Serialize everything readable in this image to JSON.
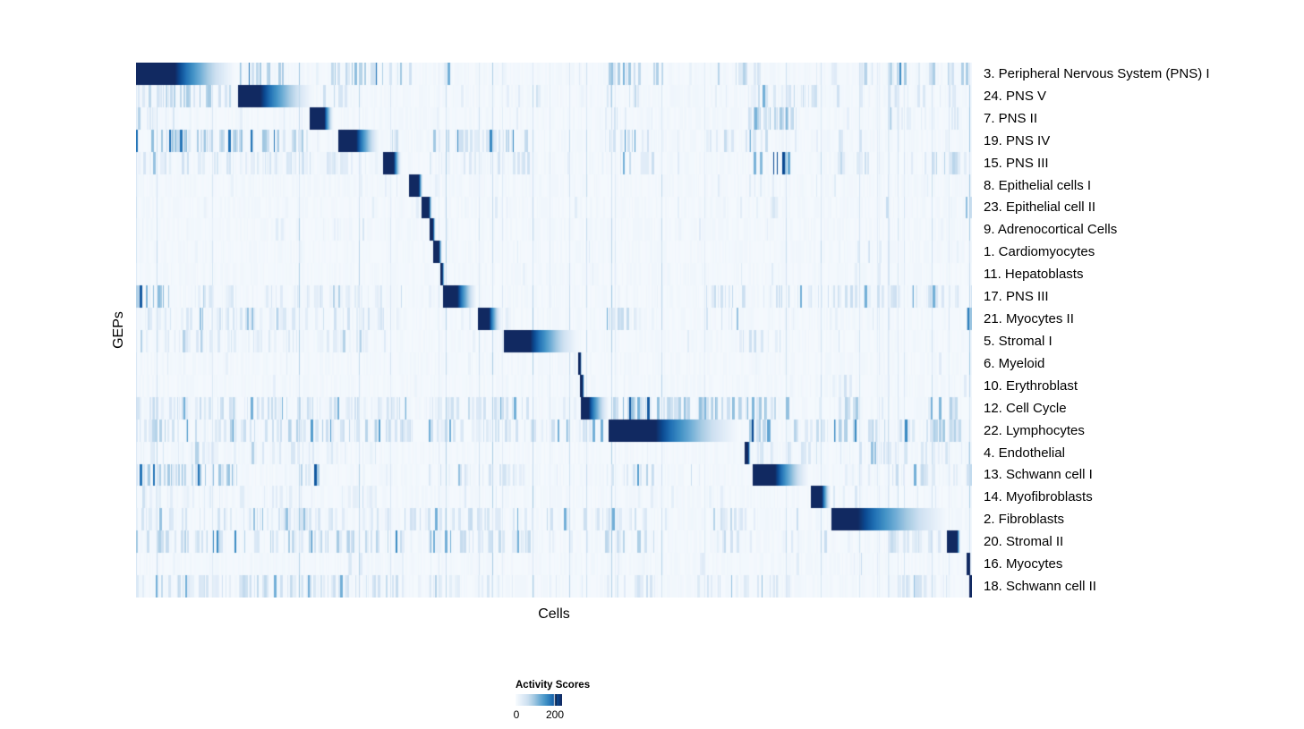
{
  "chart_data": {
    "type": "heatmap",
    "xlabel": "Cells",
    "ylabel": "GEPs",
    "legend": {
      "title": "Activity Scores",
      "min_label": "0",
      "max_label": "200",
      "tick_values": [
        0,
        200
      ],
      "tick_fraction": 0.85
    },
    "colormap": {
      "name": "blues",
      "stops": [
        [
          0.0,
          "#f6fafe"
        ],
        [
          0.13,
          "#e2edf8"
        ],
        [
          0.26,
          "#cde0f1"
        ],
        [
          0.39,
          "#a5cae3"
        ],
        [
          0.52,
          "#6fadd6"
        ],
        [
          0.65,
          "#4292c6"
        ],
        [
          0.78,
          "#2171b5"
        ],
        [
          0.9,
          "#0b4a92"
        ],
        [
          1.0,
          "#112961"
        ]
      ]
    },
    "render_columns": 934,
    "rows": [
      {
        "label": "3. Peripheral Nervous System (PNS) I",
        "block": {
          "start": 0.0,
          "solid": 0.046,
          "fade": 0.12
        },
        "noise": {
          "base": 0.05,
          "regions": [
            [
              0.122,
              0.175,
              0.55,
              0.45
            ],
            [
              0.23,
              0.33,
              0.5,
              0.45
            ],
            [
              0.355,
              0.38,
              0.3,
              0.3
            ],
            [
              0.475,
              0.49,
              0.3,
              0.3
            ],
            [
              0.56,
              0.63,
              0.45,
              0.5
            ],
            [
              0.69,
              0.75,
              0.35,
              0.35
            ],
            [
              0.86,
              1.0,
              0.45,
              0.4
            ]
          ]
        }
      },
      {
        "label": "24. PNS V",
        "block": {
          "start": 0.121,
          "solid": 0.148,
          "fade": 0.214
        },
        "noise": {
          "base": 0.05,
          "regions": [
            [
              0.0,
              0.115,
              0.55,
              0.4
            ],
            [
              0.22,
              0.25,
              0.3,
              0.3
            ],
            [
              0.475,
              0.49,
              0.3,
              0.3
            ],
            [
              0.56,
              0.6,
              0.3,
              0.3
            ],
            [
              0.73,
              0.84,
              0.4,
              0.3
            ],
            [
              0.9,
              1.0,
              0.3,
              0.25
            ]
          ]
        }
      },
      {
        "label": "7. PNS II",
        "block": {
          "start": 0.207,
          "solid": 0.225,
          "fade": 0.236
        },
        "noise": {
          "base": 0.04,
          "regions": [
            [
              0.0,
              0.05,
              0.3,
              0.2
            ],
            [
              0.56,
              0.6,
              0.3,
              0.25
            ],
            [
              0.73,
              0.79,
              0.55,
              0.5
            ],
            [
              0.9,
              1.0,
              0.25,
              0.2
            ]
          ]
        }
      },
      {
        "label": "19. PNS IV",
        "block": {
          "start": 0.241,
          "solid": 0.263,
          "fade": 0.292
        },
        "noise": {
          "base": 0.06,
          "regions": [
            [
              0.0,
              0.205,
              0.55,
              0.45
            ],
            [
              0.3,
              0.33,
              0.3,
              0.3
            ],
            [
              0.35,
              0.47,
              0.45,
              0.4
            ],
            [
              0.56,
              0.62,
              0.4,
              0.35
            ],
            [
              0.68,
              0.76,
              0.35,
              0.3
            ],
            [
              0.83,
              0.87,
              0.35,
              0.3
            ]
          ]
        }
      },
      {
        "label": "15. PNS III",
        "block": {
          "start": 0.295,
          "solid": 0.308,
          "fade": 0.317
        },
        "noise": {
          "base": 0.06,
          "regions": [
            [
              0.0,
              0.29,
              0.4,
              0.25
            ],
            [
              0.35,
              0.47,
              0.35,
              0.25
            ],
            [
              0.56,
              0.62,
              0.35,
              0.3
            ],
            [
              0.73,
              0.78,
              0.5,
              0.55
            ],
            [
              0.83,
              0.88,
              0.4,
              0.35
            ],
            [
              0.95,
              1.0,
              0.4,
              0.35
            ]
          ]
        }
      },
      {
        "label": "8. Epithelial cells I",
        "block": {
          "start": 0.326,
          "solid": 0.338,
          "fade": 0.343
        },
        "noise": {
          "base": 0.03,
          "regions": [
            [
              0.73,
              0.76,
              0.25,
              0.25
            ]
          ]
        }
      },
      {
        "label": "23. Epithelial cell II",
        "block": {
          "start": 0.341,
          "solid": 0.35,
          "fade": 0.354
        },
        "noise": {
          "base": 0.03,
          "regions": [
            [
              0.73,
              0.77,
              0.3,
              0.25
            ],
            [
              0.992,
              1.0,
              0.6,
              0.6
            ]
          ]
        }
      },
      {
        "label": "9. Adrenocortical Cells",
        "block": {
          "start": 0.351,
          "solid": 0.355,
          "fade": 0.358
        },
        "noise": {
          "base": 0.04,
          "regions": [
            [
              0.19,
              0.28,
              0.25,
              0.12
            ]
          ]
        }
      },
      {
        "label": "1. Cardiomyocytes",
        "block": {
          "start": 0.355,
          "solid": 0.362,
          "fade": 0.366
        },
        "noise": {
          "base": 0.04,
          "regions": [
            [
              0.87,
              0.89,
              0.3,
              0.3
            ]
          ]
        }
      },
      {
        "label": "11. Hepatoblasts",
        "block": {
          "start": 0.363,
          "solid": 0.366,
          "fade": 0.369
        },
        "noise": {
          "base": 0.025,
          "regions": []
        }
      },
      {
        "label": "17. PNS III",
        "block": {
          "start": 0.367,
          "solid": 0.384,
          "fade": 0.408
        },
        "noise": {
          "base": 0.07,
          "regions": [
            [
              0.0,
              0.04,
              0.7,
              0.5
            ],
            [
              0.06,
              0.3,
              0.35,
              0.2
            ],
            [
              0.68,
              1.0,
              0.4,
              0.3
            ]
          ]
        }
      },
      {
        "label": "21. Myocytes II",
        "block": {
          "start": 0.408,
          "solid": 0.422,
          "fade": 0.437
        },
        "noise": {
          "base": 0.06,
          "regions": [
            [
              0.0,
              0.3,
              0.4,
              0.25
            ],
            [
              0.56,
              0.6,
              0.35,
              0.3
            ],
            [
              0.68,
              0.72,
              0.3,
              0.25
            ],
            [
              0.9935,
              0.997,
              1.0,
              0.95
            ]
          ]
        }
      },
      {
        "label": "5. Stromal I",
        "block": {
          "start": 0.439,
          "solid": 0.471,
          "fade": 0.531
        },
        "noise": {
          "base": 0.06,
          "regions": [
            [
              0.0,
              0.3,
              0.35,
              0.2
            ],
            [
              0.72,
              0.77,
              0.4,
              0.3
            ],
            [
              0.83,
              0.86,
              0.3,
              0.25
            ]
          ]
        }
      },
      {
        "label": "6. Myeloid",
        "block": {
          "start": 0.528,
          "solid": 0.531,
          "fade": 0.533
        },
        "noise": {
          "base": 0.03,
          "regions": []
        }
      },
      {
        "label": "10. Erythroblast",
        "block": {
          "start": 0.531,
          "solid": 0.534,
          "fade": 0.536
        },
        "noise": {
          "base": 0.035,
          "regions": [
            [
              0.83,
              0.86,
              0.3,
              0.25
            ]
          ]
        }
      },
      {
        "label": "12. Cell Cycle",
        "block": {
          "start": 0.532,
          "solid": 0.541,
          "fade": 0.566
        },
        "noise": {
          "base": 0.08,
          "regions": [
            [
              0.0,
              0.33,
              0.45,
              0.3
            ],
            [
              0.29,
              0.31,
              0.5,
              0.7
            ],
            [
              0.35,
              0.47,
              0.4,
              0.3
            ],
            [
              0.567,
              0.65,
              0.7,
              0.5
            ],
            [
              0.65,
              0.78,
              0.55,
              0.5
            ],
            [
              0.83,
              0.87,
              0.45,
              0.4
            ],
            [
              0.95,
              0.98,
              0.5,
              0.5
            ]
          ]
        }
      },
      {
        "label": "22. Lymphocytes",
        "block": {
          "start": 0.565,
          "solid": 0.621,
          "fade": 0.724
        },
        "noise": {
          "base": 0.09,
          "regions": [
            [
              0.0,
              0.33,
              0.5,
              0.35
            ],
            [
              0.29,
              0.31,
              0.6,
              0.7
            ],
            [
              0.35,
              0.56,
              0.45,
              0.3
            ],
            [
              0.73,
              0.77,
              0.6,
              0.6
            ],
            [
              0.78,
              1.0,
              0.5,
              0.4
            ]
          ]
        }
      },
      {
        "label": "4. Endothelial",
        "block": {
          "start": 0.727,
          "solid": 0.732,
          "fade": 0.735
        },
        "noise": {
          "base": 0.05,
          "regions": [
            [
              0.0,
              0.3,
              0.3,
              0.2
            ],
            [
              0.74,
              1.0,
              0.35,
              0.25
            ]
          ]
        }
      },
      {
        "label": "13. Schwann cell I",
        "block": {
          "start": 0.737,
          "solid": 0.764,
          "fade": 0.806
        },
        "noise": {
          "base": 0.07,
          "regions": [
            [
              0.0,
              0.12,
              0.5,
              0.45
            ],
            [
              0.19,
              0.22,
              0.5,
              0.5
            ],
            [
              0.35,
              0.47,
              0.35,
              0.25
            ],
            [
              0.56,
              0.62,
              0.4,
              0.35
            ],
            [
              0.9,
              1.0,
              0.35,
              0.3
            ]
          ]
        }
      },
      {
        "label": "14. Myofibroblasts",
        "block": {
          "start": 0.807,
          "solid": 0.82,
          "fade": 0.831
        },
        "noise": {
          "base": 0.04,
          "regions": [
            [
              0.0,
              0.3,
              0.25,
              0.15
            ],
            [
              0.83,
              0.86,
              0.3,
              0.25
            ]
          ]
        }
      },
      {
        "label": "2. Fibroblasts",
        "block": {
          "start": 0.831,
          "solid": 0.863,
          "fade": 0.974
        },
        "noise": {
          "base": 0.06,
          "regions": [
            [
              0.0,
              0.31,
              0.35,
              0.25
            ],
            [
              0.29,
              0.31,
              0.5,
              0.6
            ],
            [
              0.32,
              0.62,
              0.45,
              0.3
            ],
            [
              0.69,
              0.73,
              0.4,
              0.35
            ]
          ]
        }
      },
      {
        "label": "20. Stromal II",
        "block": {
          "start": 0.97,
          "solid": 0.982,
          "fade": 0.986
        },
        "noise": {
          "base": 0.07,
          "regions": [
            [
              0.0,
              0.32,
              0.5,
              0.4
            ],
            [
              0.35,
              0.47,
              0.4,
              0.3
            ],
            [
              0.56,
              0.62,
              0.45,
              0.4
            ],
            [
              0.68,
              0.72,
              0.35,
              0.3
            ],
            [
              0.9,
              0.96,
              0.35,
              0.3
            ]
          ]
        }
      },
      {
        "label": "16. Myocytes",
        "block": {
          "start": 0.993,
          "solid": 0.997,
          "fade": 0.998
        },
        "noise": {
          "base": 0.03,
          "regions": [
            [
              0.25,
              0.27,
              0.3,
              0.3
            ]
          ]
        }
      },
      {
        "label": "18. Schwann cell II",
        "block": {
          "start": 0.9965,
          "solid": 1.0,
          "fade": 1.0
        },
        "noise": {
          "base": 0.06,
          "regions": [
            [
              0.0,
              0.32,
              0.4,
              0.3
            ],
            [
              0.35,
              0.45,
              0.3,
              0.2
            ],
            [
              0.56,
              0.62,
              0.35,
              0.3
            ],
            [
              0.68,
              0.78,
              0.35,
              0.25
            ],
            [
              0.9,
              0.97,
              0.3,
              0.25
            ]
          ]
        }
      }
    ]
  }
}
